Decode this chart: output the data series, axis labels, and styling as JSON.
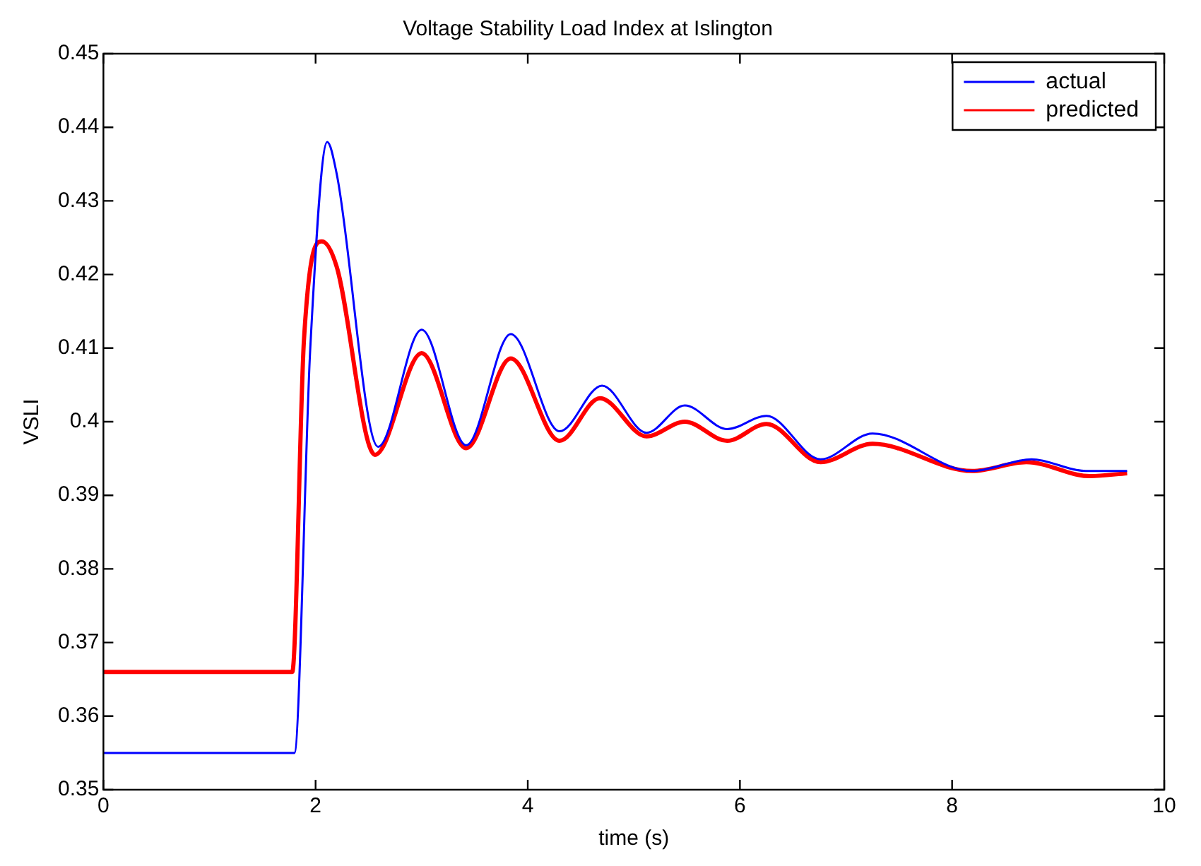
{
  "chart_data": {
    "type": "line",
    "title": "Voltage Stability Load Index at Islington",
    "xlabel": "time (s)",
    "ylabel": "VSLI",
    "xlim": [
      0,
      10
    ],
    "xticks": [
      0,
      2,
      4,
      6,
      8,
      10
    ],
    "ylim": [
      0.35,
      0.45
    ],
    "yticks": [
      0.35,
      0.36,
      0.37,
      0.38,
      0.39,
      0.4,
      0.41,
      0.42,
      0.43,
      0.44,
      0.45
    ],
    "grid": false,
    "legend": "top right",
    "marker": "none",
    "line_style": "solid",
    "series": [
      {
        "name": "actual",
        "color": "#0000ff",
        "x": [
          0,
          1.8,
          1.95,
          2.11,
          2.2,
          2.59,
          3.0,
          3.42,
          3.84,
          4.3,
          4.7,
          5.12,
          5.48,
          5.88,
          6.25,
          6.76,
          7.25,
          8.19,
          8.75,
          9.26,
          9.65
        ],
        "values": [
          0.355,
          0.355,
          0.41,
          0.438,
          0.4336,
          0.3966,
          0.4125,
          0.3968,
          0.4119,
          0.3987,
          0.4049,
          0.3985,
          0.4022,
          0.399,
          0.4008,
          0.3949,
          0.3984,
          0.3933,
          0.3949,
          0.3933,
          0.3933
        ]
      },
      {
        "name": "predicted",
        "color": "#ff0000",
        "x": [
          0,
          1.78,
          1.89,
          2.06,
          2.2,
          2.56,
          3.0,
          3.42,
          3.84,
          4.3,
          4.68,
          5.12,
          5.48,
          5.88,
          6.25,
          6.76,
          7.25,
          8.19,
          8.7,
          9.3,
          9.65
        ],
        "values": [
          0.366,
          0.366,
          0.411,
          0.4245,
          0.421,
          0.3955,
          0.4093,
          0.3964,
          0.4086,
          0.3974,
          0.4032,
          0.398,
          0.4,
          0.3974,
          0.3997,
          0.3945,
          0.397,
          0.3933,
          0.3945,
          0.3926,
          0.393
        ]
      }
    ]
  }
}
